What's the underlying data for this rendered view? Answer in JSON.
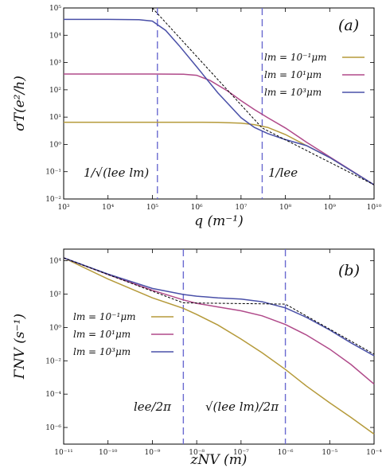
{
  "chart_data": [
    {
      "type": "line",
      "panel_label": "(a)",
      "xlabel": "q (m⁻¹)",
      "ylabel": "σT(e²/h)",
      "xscale": "log",
      "yscale": "log",
      "xlim": [
        1000.0,
        10000000000.0
      ],
      "ylim": [
        0.01,
        100000.0
      ],
      "x_ticks": [
        "10³",
        "10⁴",
        "10⁵",
        "10⁶",
        "10⁷",
        "10⁸",
        "10⁹",
        "10¹⁰"
      ],
      "y_ticks": [
        "10⁻²",
        "10⁻¹",
        "10⁰",
        "10¹",
        "10²",
        "10³",
        "10⁴",
        "10⁵"
      ],
      "legend_position": "right",
      "series": [
        {
          "name": "lm = 10⁻¹μm",
          "color": "#b59a3a",
          "x": [
            1000.0,
            10000.0,
            100000.0,
            1000000.0,
            3000000.0,
            10000000.0,
            20000000.0,
            40000000.0,
            100000000.0,
            300000000.0,
            1000000000.0,
            10000000000.0
          ],
          "y": [
            6.5,
            6.5,
            6.5,
            6.5,
            6.4,
            6.0,
            5.3,
            4.2,
            2.3,
            0.9,
            0.33,
            0.033
          ]
        },
        {
          "name": "lm = 10¹μm",
          "color": "#b04a8a",
          "x": [
            1000.0,
            10000.0,
            100000.0,
            500000.0,
            1000000.0,
            2000000.0,
            5000000.0,
            10000000.0,
            20000000.0,
            40000000.0,
            100000000.0,
            300000000.0,
            1000000000.0,
            10000000000.0
          ],
          "y": [
            380,
            380,
            380,
            375,
            340,
            220,
            90,
            40,
            19,
            9.5,
            4.0,
            1.2,
            0.35,
            0.033
          ]
        },
        {
          "name": "lm = 10³μm",
          "color": "#4a50a8",
          "x": [
            1000.0,
            10000.0,
            50000.0,
            100000.0,
            200000.0,
            400000.0,
            1000000.0,
            3000000.0,
            10000000.0,
            20000000.0,
            40000000.0,
            100000000.0,
            300000000.0,
            1000000000.0,
            10000000000.0
          ],
          "y": [
            38000,
            38000,
            37000,
            33000,
            15000,
            4200,
            700,
            78,
            9.5,
            4.2,
            2.5,
            1.5,
            0.9,
            0.33,
            0.033
          ]
        }
      ],
      "guides": [
        {
          "label": "1/√(lee lm)",
          "x": 130000.0
        },
        {
          "label": "1/lee",
          "x": 30000000.0
        }
      ],
      "asymptote": {
        "x": [
          100000.0,
          30000000.0,
          10000000000.0
        ],
        "y": [
          100000.0,
          4,
          0.033
        ]
      }
    },
    {
      "type": "line",
      "panel_label": "(b)",
      "xlabel": "zNV (m)",
      "ylabel": "ΓNV (s⁻¹)",
      "xscale": "log",
      "yscale": "log",
      "xlim": [
        1e-11,
        0.0001
      ],
      "ylim": [
        1e-07,
        50000.0
      ],
      "x_ticks": [
        "10⁻¹¹",
        "10⁻¹⁰",
        "10⁻⁹",
        "10⁻⁸",
        "10⁻⁷",
        "10⁻⁶",
        "10⁻⁵",
        "10⁻⁴"
      ],
      "y_ticks": [
        "10⁻⁶",
        "10⁻⁴",
        "10⁻²",
        "10⁰",
        "10²",
        "10⁴"
      ],
      "legend_position": "left",
      "series": [
        {
          "name": "lm = 10⁻¹μm",
          "color": "#b59a3a",
          "x": [
            1e-11,
            1e-10,
            1e-09,
            5e-09,
            1e-08,
            3e-08,
            1e-07,
            3e-07,
            1e-06,
            3e-06,
            1e-05,
            3e-05,
            0.0001
          ],
          "y": [
            15000,
            800,
            60,
            14,
            6,
            1.4,
            0.2,
            0.03,
            0.003,
            0.0003,
            3e-05,
            4e-06,
            4e-07
          ]
        },
        {
          "name": "lm = 10¹μm",
          "color": "#b04a8a",
          "x": [
            1e-11,
            1e-10,
            1e-09,
            5e-09,
            1e-08,
            3e-08,
            1e-07,
            3e-07,
            1e-06,
            3e-06,
            1e-05,
            3e-05,
            0.0001
          ],
          "y": [
            15000,
            1500,
            170,
            45,
            28,
            17,
            10,
            5,
            1.5,
            0.35,
            0.05,
            0.006,
            0.0004
          ]
        },
        {
          "name": "lm = 10³μm",
          "color": "#4a50a8",
          "x": [
            1e-11,
            1e-10,
            1e-09,
            5e-09,
            1e-08,
            3e-08,
            1e-07,
            3e-07,
            1e-06,
            3e-06,
            1e-05,
            3e-05,
            0.0001
          ],
          "y": [
            15000,
            1600,
            220,
            95,
            75,
            60,
            50,
            35,
            15,
            4,
            0.7,
            0.12,
            0.02
          ]
        }
      ],
      "guides": [
        {
          "label": "lee/2π",
          "x": 5e-09
        },
        {
          "label": "√(lee lm)/2π",
          "x": 1e-06
        }
      ],
      "asymptote": {
        "x": [
          1e-11,
          5e-09,
          1e-06,
          0.0001
        ],
        "y": [
          15000,
          30,
          25,
          0.025
        ]
      }
    }
  ]
}
